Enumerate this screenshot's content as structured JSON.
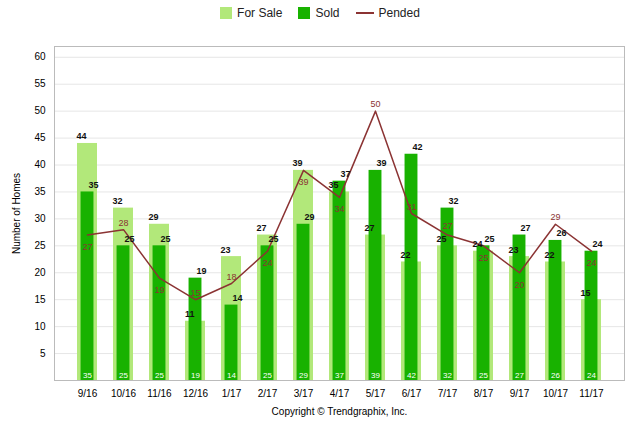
{
  "chart_data": {
    "type": "bar",
    "categories": [
      "9/16",
      "10/16",
      "11/16",
      "12/16",
      "1/17",
      "2/17",
      "3/17",
      "4/17",
      "5/17",
      "6/17",
      "7/17",
      "8/17",
      "9/17",
      "10/17",
      "11/17"
    ],
    "series": [
      {
        "name": "For Sale",
        "type": "bar",
        "color": "#b2e87a",
        "values": [
          44,
          32,
          29,
          11,
          23,
          27,
          39,
          35,
          27,
          22,
          25,
          24,
          23,
          22,
          15
        ]
      },
      {
        "name": "Sold",
        "type": "bar",
        "color": "#18b200",
        "values": [
          35,
          25,
          25,
          19,
          14,
          25,
          29,
          37,
          39,
          42,
          32,
          25,
          27,
          26,
          24
        ]
      },
      {
        "name": "Pended",
        "type": "line",
        "color": "#8b3333",
        "values": [
          27,
          28,
          19,
          15,
          18,
          24,
          39,
          34,
          50,
          31,
          27,
          25,
          20,
          29,
          24
        ]
      }
    ],
    "xlabel": "Copyright © Trendgraphix, Inc.",
    "ylabel": "Number of Homes",
    "ylim": [
      0,
      62
    ],
    "yticks": [
      5,
      10,
      15,
      20,
      25,
      30,
      35,
      40,
      45,
      50,
      55,
      60
    ],
    "grid": true,
    "legend": "top",
    "data_labels": true
  }
}
